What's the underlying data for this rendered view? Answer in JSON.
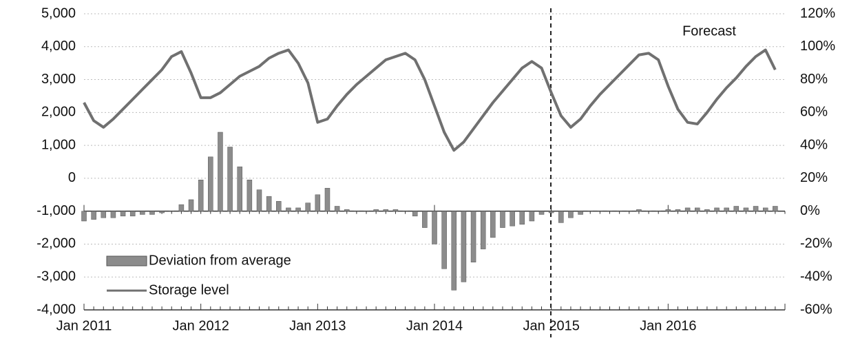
{
  "chart_data": {
    "type": "bar-line",
    "categories": [
      "Jan 2011",
      null,
      null,
      null,
      null,
      null,
      null,
      null,
      null,
      null,
      null,
      null,
      "Jan 2012",
      null,
      null,
      null,
      null,
      null,
      null,
      null,
      null,
      null,
      null,
      null,
      "Jan 2013",
      null,
      null,
      null,
      null,
      null,
      null,
      null,
      null,
      null,
      null,
      null,
      "Jan 2014",
      null,
      null,
      null,
      null,
      null,
      null,
      null,
      null,
      null,
      null,
      null,
      "Jan 2015",
      null,
      null,
      null,
      null,
      null,
      null,
      null,
      null,
      null,
      null,
      null,
      "Jan 2016",
      null,
      null,
      null,
      null,
      null,
      null,
      null,
      null,
      null,
      null,
      null
    ],
    "series": [
      {
        "name": "Deviation from average",
        "type": "bar",
        "axis": "y2",
        "color": "#8c8c8c",
        "values": [
          -6,
          -5,
          -4,
          -4,
          -3,
          -3,
          -2,
          -2,
          -1,
          0,
          4,
          7,
          19,
          33,
          48,
          39,
          27,
          19,
          13,
          9,
          6,
          2,
          2,
          5,
          10,
          14,
          3,
          1,
          0,
          0,
          1,
          1,
          1,
          0,
          -3,
          -10,
          -20,
          -35,
          -48,
          -43,
          -31,
          -23,
          -16,
          -10,
          -9,
          -8,
          -6,
          -2,
          -1,
          -7,
          -4,
          -2,
          0,
          0,
          0,
          0,
          0,
          1,
          0,
          0,
          1,
          1,
          2,
          2,
          1,
          2,
          2,
          3,
          2,
          3,
          2,
          3
        ]
      },
      {
        "name": "Storage level",
        "type": "line",
        "color": "#707070",
        "values": [
          2300,
          1750,
          1550,
          1800,
          2100,
          2400,
          2700,
          3000,
          3300,
          3700,
          3850,
          3200,
          2450,
          2450,
          2600,
          2850,
          3100,
          3250,
          3400,
          3650,
          3800,
          3900,
          3500,
          2900,
          1700,
          1800,
          2200,
          2550,
          2850,
          3100,
          3350,
          3600,
          3700,
          3800,
          3600,
          3000,
          2200,
          1400,
          850,
          1100,
          1500,
          1900,
          2300,
          2650,
          3000,
          3350,
          3550,
          3350,
          2600,
          1900,
          1550,
          1800,
          2200,
          2550,
          2850,
          3150,
          3450,
          3750,
          3800,
          3600,
          2800,
          2100,
          1700,
          1650,
          2000,
          2400,
          2750,
          3050,
          3400,
          3700,
          3900,
          3300
        ]
      }
    ],
    "annotation": "Forecast",
    "ylim": [
      -4000,
      5000
    ],
    "yticks": [
      {
        "value": -4000,
        "label": "-4,000"
      },
      {
        "value": -3000,
        "label": "-3,000"
      },
      {
        "value": -2000,
        "label": "-2,000"
      },
      {
        "value": -1000,
        "label": "-1,000"
      },
      0,
      {
        "value": 1000,
        "label": "1,000"
      },
      {
        "value": 2000,
        "label": "2,000"
      },
      {
        "value": 3000,
        "label": "3,000"
      },
      {
        "value": 4000,
        "label": "4,000"
      },
      {
        "value": 5000,
        "label": "5,000"
      }
    ],
    "y2lim": [
      -60,
      120
    ],
    "y2ticks": [
      {
        "value": -60,
        "label": "-60%"
      },
      {
        "value": -40,
        "label": "-40%"
      },
      {
        "value": -20,
        "label": "-20%"
      },
      {
        "value": 0,
        "label": "0%"
      },
      {
        "value": 20,
        "label": "20%"
      },
      {
        "value": 40,
        "label": "40%"
      },
      {
        "value": 60,
        "label": "60%"
      },
      {
        "value": 80,
        "label": "80%"
      },
      {
        "value": 100,
        "label": "100%"
      },
      {
        "value": 120,
        "label": "120%"
      }
    ],
    "grid": true
  }
}
